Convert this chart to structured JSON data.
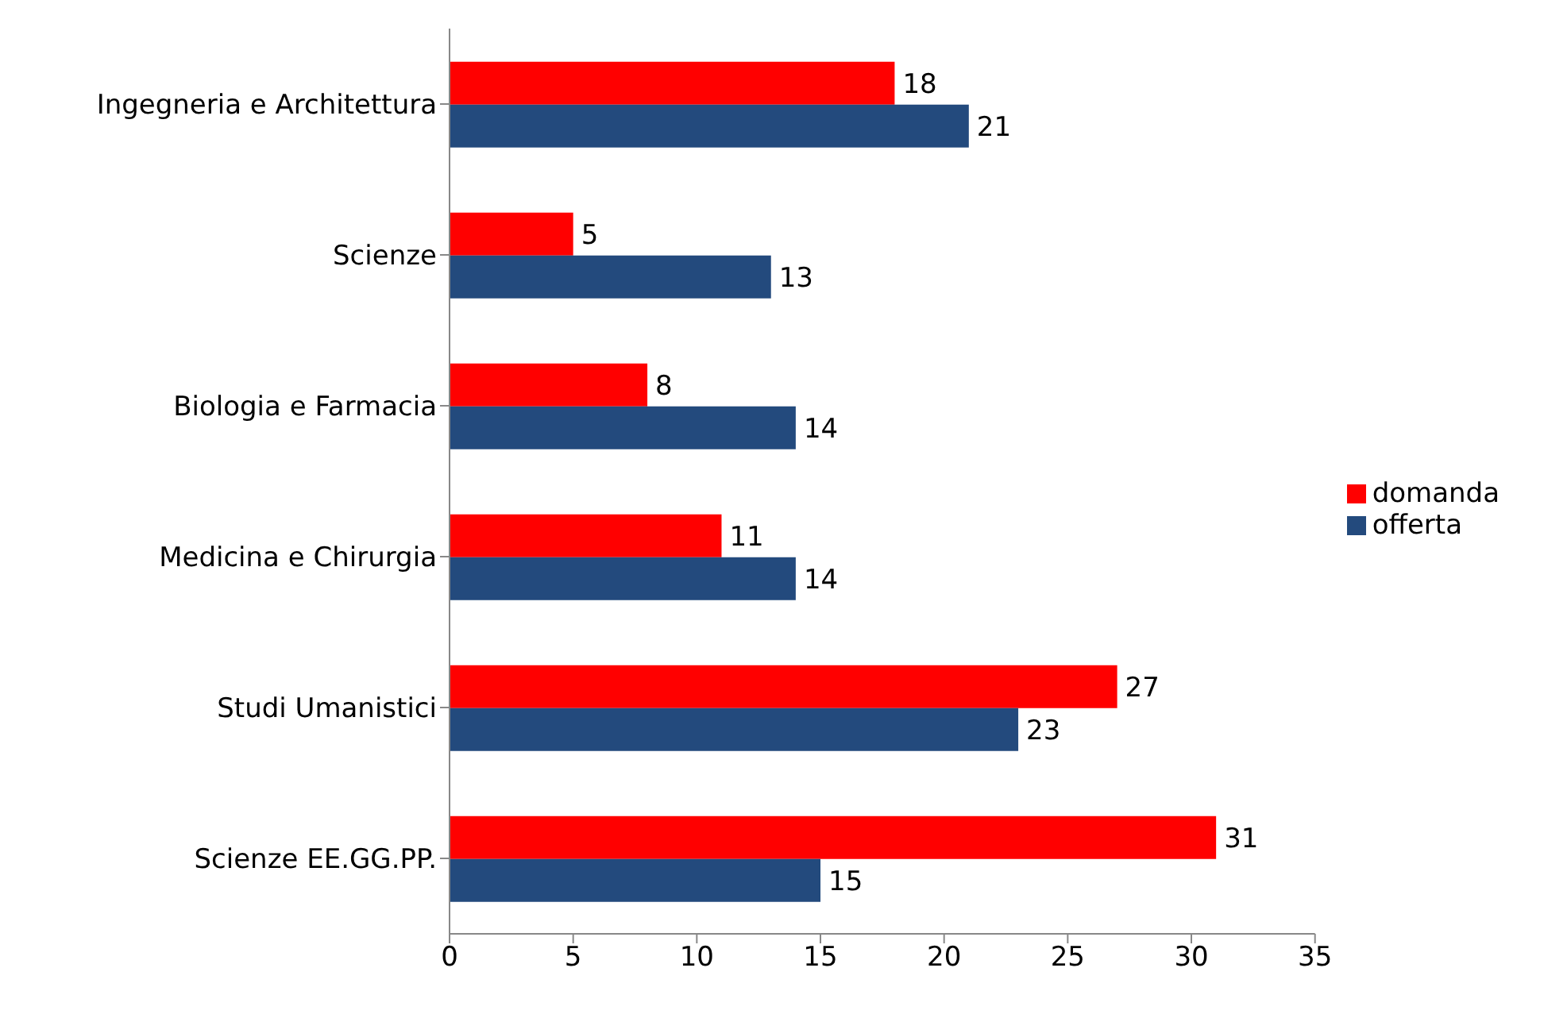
{
  "chart_data": {
    "type": "bar",
    "orientation": "horizontal",
    "categories": [
      "Ingegneria e Architettura",
      "Scienze",
      "Biologia e Farmacia",
      "Medicina e Chirurgia",
      "Studi Umanistici",
      "Scienze EE.GG.PP."
    ],
    "series": [
      {
        "name": "domanda",
        "color": "#ff0000",
        "values": [
          18,
          5,
          8,
          11,
          27,
          31
        ]
      },
      {
        "name": "offerta",
        "color": "#234a7d",
        "values": [
          21,
          13,
          14,
          14,
          23,
          15
        ]
      }
    ],
    "xlim": [
      0,
      35
    ],
    "xticks": [
      0,
      5,
      10,
      15,
      20,
      25,
      30,
      35
    ],
    "grid": false,
    "legend": "right",
    "data_labels": true
  }
}
